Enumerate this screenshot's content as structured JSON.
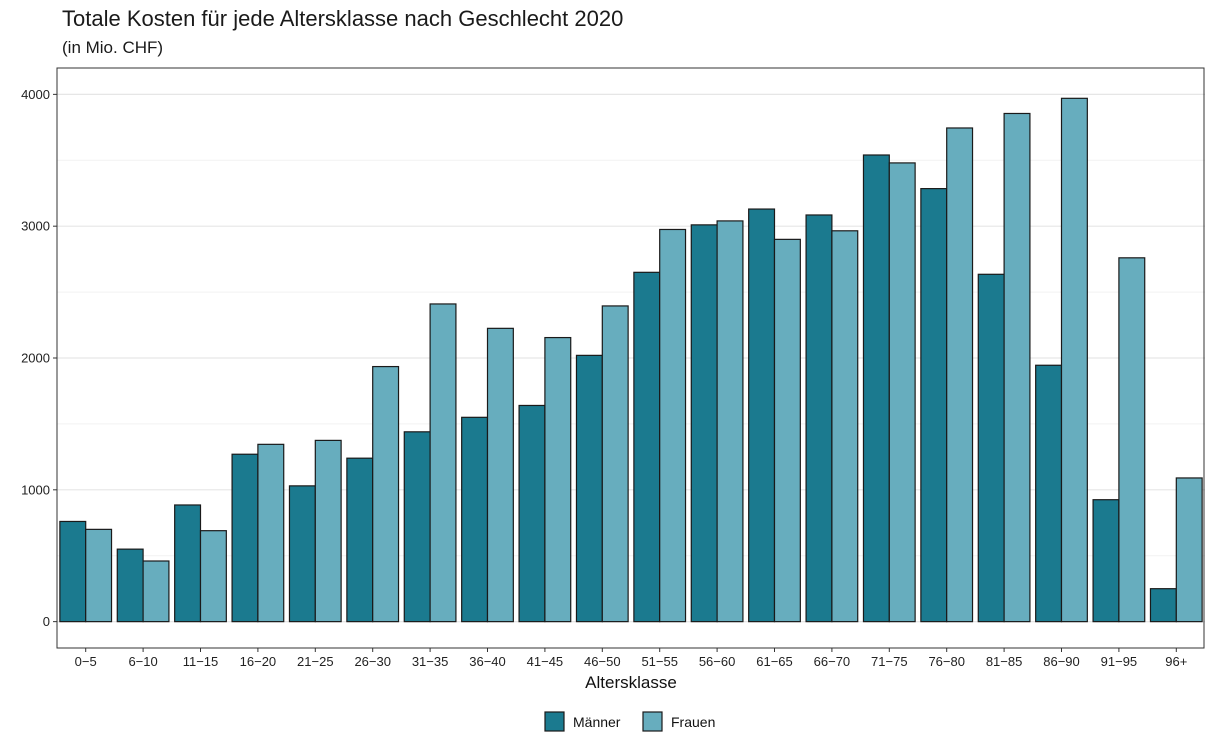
{
  "chart_data": {
    "type": "bar",
    "title": "Totale Kosten für jede Altersklasse nach Geschlecht 2020",
    "subtitle": "(in Mio. CHF)",
    "xlabel": "Altersklasse",
    "ylabel": "",
    "ylim": [
      -200,
      4200
    ],
    "yticks": [
      0,
      1000,
      2000,
      3000,
      4000
    ],
    "grid": true,
    "legend_position": "bottom",
    "categories": [
      "0−5",
      "6−10",
      "11−15",
      "16−20",
      "21−25",
      "26−30",
      "31−35",
      "36−40",
      "41−45",
      "46−50",
      "51−55",
      "56−60",
      "61−65",
      "66−70",
      "71−75",
      "76−80",
      "81−85",
      "86−90",
      "91−95",
      "96+"
    ],
    "series": [
      {
        "name": "Männer",
        "color": "#1b7a8f",
        "values": [
          760,
          550,
          885,
          1270,
          1030,
          1240,
          1440,
          1550,
          1640,
          2020,
          2650,
          3010,
          3130,
          3085,
          3540,
          3285,
          2635,
          1945,
          925,
          250
        ]
      },
      {
        "name": "Frauen",
        "color": "#67adbe",
        "values": [
          700,
          460,
          690,
          1345,
          1375,
          1935,
          2410,
          2225,
          2155,
          2395,
          2975,
          3040,
          2900,
          2965,
          3480,
          3745,
          3855,
          3970,
          2760,
          1090
        ]
      }
    ]
  }
}
